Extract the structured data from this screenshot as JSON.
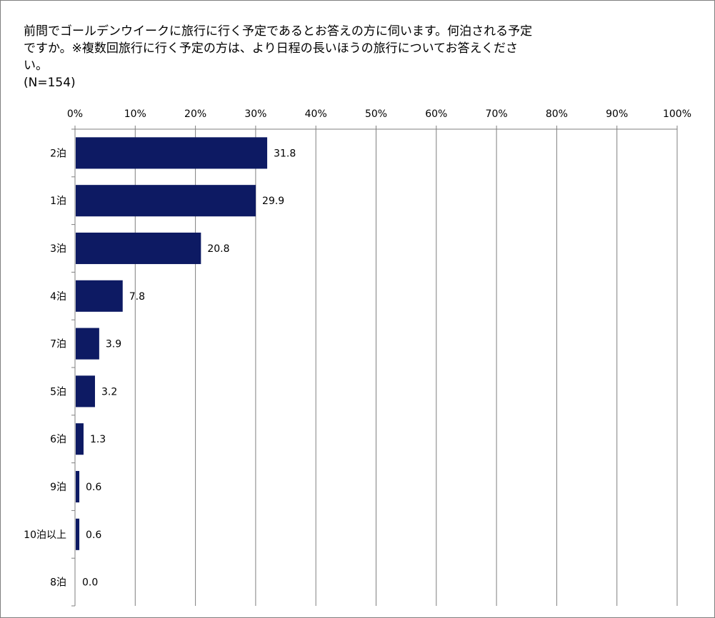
{
  "title": {
    "line1": "前問でゴールデンウイークに旅行に行く予定であるとお答えの方に伺います。何泊される予定",
    "line2": "ですか。※複数回旅行に行く予定の方は、より日程の長いほうの旅行についてお答えくださ",
    "line3": "い。"
  },
  "sample_note": "(N=154)",
  "chart_data": {
    "type": "bar",
    "orientation": "horizontal",
    "title": "前問でゴールデンウイークに旅行に行く予定であるとお答えの方に伺います。何泊される予定ですか。※複数回旅行に行く予定の方は、より日程の長いほうの旅行についてお答えください。",
    "categories": [
      "2泊",
      "1泊",
      "3泊",
      "4泊",
      "7泊",
      "5泊",
      "6泊",
      "9泊",
      "10泊以上",
      "8泊"
    ],
    "values": [
      31.8,
      29.9,
      20.8,
      7.8,
      3.9,
      3.2,
      1.3,
      0.6,
      0.6,
      0.0
    ],
    "value_labels": [
      "31.8",
      "29.9",
      "20.8",
      "7.8",
      "3.9",
      "3.2",
      "1.3",
      "0.6",
      "0.6",
      "0.0"
    ],
    "xlim": [
      0,
      100
    ],
    "x_ticks": [
      "0%",
      "10%",
      "20%",
      "30%",
      "40%",
      "50%",
      "60%",
      "70%",
      "80%",
      "90%",
      "100%"
    ],
    "x_axis_position": "top",
    "grid": true,
    "bar_color": "#0d1a63",
    "grid_color": "#7f7f7f"
  }
}
